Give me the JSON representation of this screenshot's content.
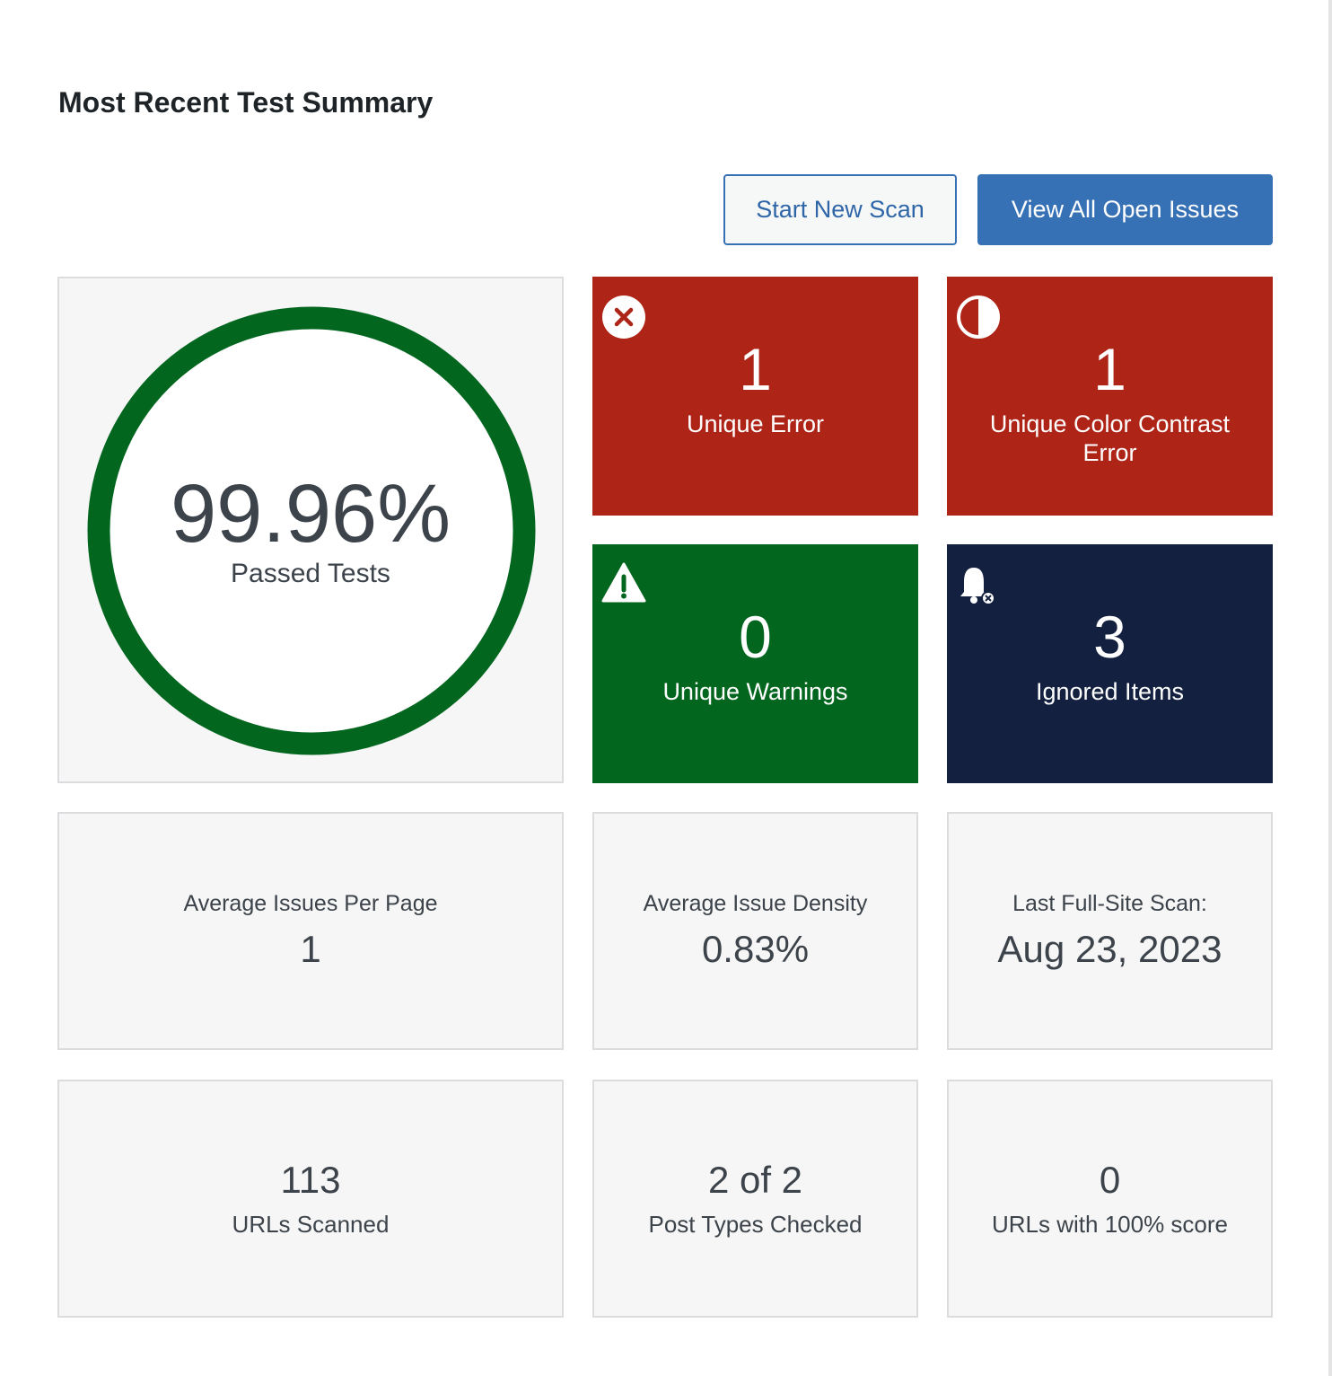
{
  "header": {
    "title": "Most Recent Test Summary"
  },
  "buttons": [
    "Start New Scan",
    "View All Open Issues"
  ],
  "score": {
    "value": "99.96%",
    "label": "Passed Tests"
  },
  "tiles": [
    {
      "value": "1",
      "label": "Unique Error"
    },
    {
      "value": "1",
      "label": "Unique Color Contrast Error"
    },
    {
      "value": "0",
      "label": "Unique Warnings"
    },
    {
      "value": "3",
      "label": "Ignored Items"
    }
  ],
  "stats": [
    {
      "label": "Average Issues Per Page",
      "value": "1"
    },
    {
      "label": "Average Issue Density",
      "value": "0.83%"
    },
    {
      "label": "Last Full-Site Scan:",
      "value": "Aug 23, 2023"
    }
  ],
  "counts": [
    {
      "value": "113",
      "label": "URLs Scanned"
    },
    {
      "value": "2 of 2",
      "label": "Post Types Checked"
    },
    {
      "value": "0",
      "label": "URLs with 100% score"
    }
  ]
}
